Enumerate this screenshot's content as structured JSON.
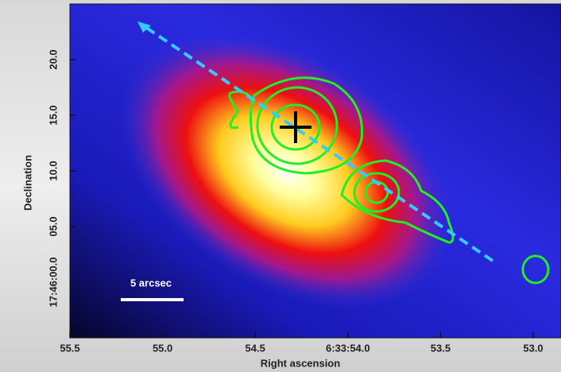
{
  "chart_data": {
    "type": "image",
    "x_label": "Right ascension",
    "y_label": "Declination",
    "annotation": "5 arcsec",
    "xlim": [
      55.5,
      52.85
    ],
    "ylim": [
      -5,
      25
    ],
    "xticks": [
      55.5,
      {
        "value": 55.0,
        "label": "55.0"
      },
      54.5,
      {
        "value": 54.0,
        "label": "6:33:54.0"
      },
      53.5,
      {
        "value": 53.0,
        "label": "53.0"
      }
    ],
    "yticks": [
      {
        "value": 0,
        "label": "17:46:00.0"
      },
      {
        "value": 5,
        "label": "05.0"
      },
      {
        "value": 10,
        "label": "10.0"
      },
      {
        "value": 15,
        "label": "15.0"
      },
      {
        "value": 20,
        "label": "20.0"
      }
    ]
  }
}
